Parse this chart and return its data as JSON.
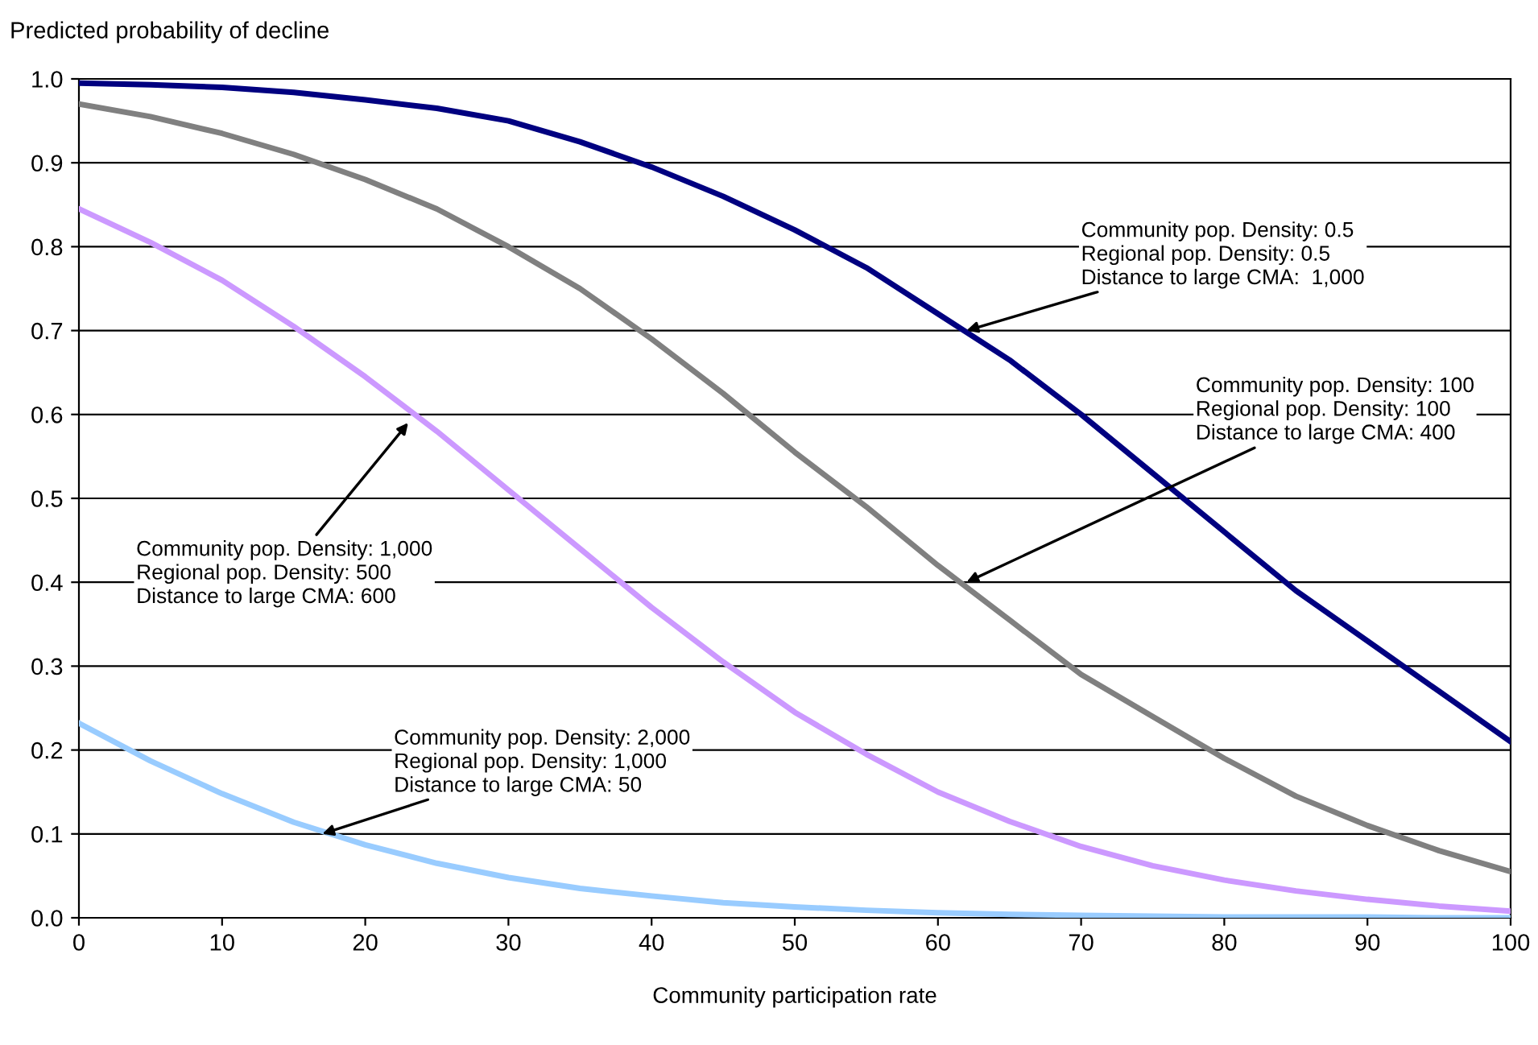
{
  "chart_data": {
    "type": "line",
    "ylabel": "Predicted probability of decline",
    "xlabel": "Community participation rate",
    "x": [
      0,
      5,
      10,
      15,
      20,
      25,
      30,
      35,
      40,
      45,
      50,
      55,
      60,
      65,
      70,
      75,
      80,
      85,
      90,
      95,
      100
    ],
    "series": [
      {
        "color": "#000080",
        "values": [
          0.995,
          0.993,
          0.99,
          0.984,
          0.975,
          0.965,
          0.95,
          0.925,
          0.895,
          0.86,
          0.82,
          0.775,
          0.72,
          0.665,
          0.6,
          0.53,
          0.46,
          0.39,
          0.33,
          0.27,
          0.21
        ]
      },
      {
        "color": "#808080",
        "values": [
          0.97,
          0.955,
          0.935,
          0.91,
          0.88,
          0.845,
          0.8,
          0.75,
          0.69,
          0.625,
          0.555,
          0.49,
          0.42,
          0.355,
          0.29,
          0.24,
          0.19,
          0.145,
          0.11,
          0.08,
          0.055
        ]
      },
      {
        "color": "#cc99ff",
        "values": [
          0.845,
          0.805,
          0.76,
          0.705,
          0.645,
          0.58,
          0.51,
          0.44,
          0.37,
          0.305,
          0.245,
          0.195,
          0.15,
          0.115,
          0.085,
          0.062,
          0.045,
          0.032,
          0.022,
          0.014,
          0.008
        ]
      },
      {
        "color": "#99ccff",
        "values": [
          0.232,
          0.187,
          0.148,
          0.114,
          0.087,
          0.065,
          0.048,
          0.035,
          0.026,
          0.018,
          0.013,
          0.009,
          0.006,
          0.004,
          0.003,
          0.002,
          0.001,
          0.001,
          0.001,
          0.0,
          0.0
        ]
      }
    ],
    "annotations": [
      {
        "text": "Community pop. Density: 0.5\nRegional pop. Density: 0.5\nDistance to large CMA:  1,000",
        "x": 62,
        "y": 0.7
      },
      {
        "text": "Community pop. Density: 100\nRegional pop. Density: 100\nDistance to large CMA: 400",
        "x": 62,
        "y": 0.4
      },
      {
        "text": "Community pop. Density: 1,000\nRegional pop. Density: 500\nDistance to large CMA: 600",
        "x": 23,
        "y": 0.59
      },
      {
        "text": "Community pop. Density: 2,000\nRegional pop. Density: 1,000\nDistance to large CMA: 50",
        "x": 17,
        "y": 0.1
      }
    ],
    "xlim": [
      0,
      100
    ],
    "xticks": [
      0,
      10,
      20,
      30,
      40,
      50,
      60,
      70,
      80,
      90,
      100
    ],
    "ylim": [
      0,
      1.0
    ],
    "yticks": [
      {
        "value": 0,
        "label": "0.0"
      },
      {
        "value": 0.1,
        "label": "0.1"
      },
      {
        "value": 0.2,
        "label": "0.2"
      },
      {
        "value": 0.3,
        "label": "0.3"
      },
      {
        "value": 0.4,
        "label": "0.4"
      },
      {
        "value": 0.5,
        "label": "0.5"
      },
      {
        "value": 0.6,
        "label": "0.6"
      },
      {
        "value": 0.7,
        "label": "0.7"
      },
      {
        "value": 0.8,
        "label": "0.8"
      },
      {
        "value": 0.9,
        "label": "0.9"
      },
      {
        "value": 1.0,
        "label": "1.0"
      }
    ],
    "grid": "y",
    "marker": "none",
    "line_style": "solid"
  }
}
